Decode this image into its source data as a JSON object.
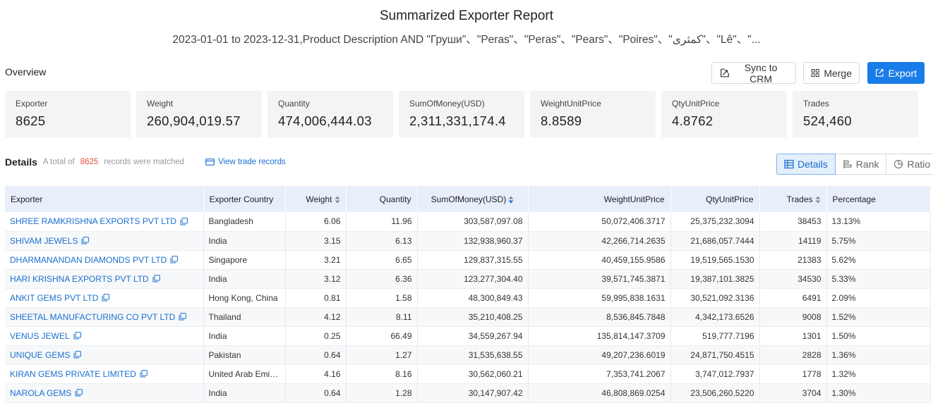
{
  "header": {
    "title": "Summarized Exporter Report",
    "subtitle": "2023-01-01 to 2023-12-31,Product Description AND \"Груши\"、\"Peras\"、\"Peras\"、\"Pears\"、\"Poires\"、\"كمثرى\"、\"Lê\"、\"..."
  },
  "overview": {
    "label": "Overview"
  },
  "toolbar": {
    "sync_label": "Sync to CRM",
    "merge_label": "Merge",
    "export_label": "Export"
  },
  "stats": [
    {
      "label": "Exporter",
      "value": "8625"
    },
    {
      "label": "Weight",
      "value": "260,904,019.57"
    },
    {
      "label": "Quantity",
      "value": "474,006,444.03"
    },
    {
      "label": "SumOfMoney(USD)",
      "value": "2,311,331,174.4"
    },
    {
      "label": "WeightUnitPrice",
      "value": "8.8589"
    },
    {
      "label": "QtyUnitPrice",
      "value": "4.8762"
    },
    {
      "label": "Trades",
      "value": "524,460"
    }
  ],
  "details": {
    "title": "Details",
    "prefix": "A total of",
    "count": "8625",
    "suffix": "records were matched",
    "view_link": "View trade records"
  },
  "view_tabs": {
    "details": "Details",
    "rank": "Rank",
    "ratio": "Ratio"
  },
  "colors": {
    "accent": "#1a7ce8",
    "link": "#1a6fcf",
    "count": "#e2513c",
    "header_bg": "#e8eefa"
  },
  "table": {
    "columns": [
      "Exporter",
      "Exporter Country",
      "Weight",
      "Quantity",
      "SumOfMoney(USD)",
      "WeightUnitPrice",
      "QtyUnitPrice",
      "Trades",
      "Percentage"
    ],
    "rows": [
      [
        "SHREE RAMKRISHNA EXPORTS PVT LTD",
        "Bangladesh",
        "6.06",
        "11.96",
        "303,587,097.08",
        "50,072,406.3717",
        "25,375,232.3094",
        "38453",
        "13.13%"
      ],
      [
        "SHIVAM JEWELS",
        "India",
        "3.15",
        "6.13",
        "132,938,960.37",
        "42,266,714.2635",
        "21,686,057.7444",
        "14119",
        "5.75%"
      ],
      [
        "DHARMANANDAN DIAMONDS PVT LTD",
        "Singapore",
        "3.21",
        "6.65",
        "129,837,315.55",
        "40,459,155.9586",
        "19,519,565.1530",
        "21383",
        "5.62%"
      ],
      [
        "HARI KRISHNA EXPORTS PVT LTD",
        "India",
        "3.12",
        "6.36",
        "123,277,304.40",
        "39,571,745.3871",
        "19,387,101.3825",
        "34530",
        "5.33%"
      ],
      [
        "ANKIT GEMS PVT LTD",
        "Hong Kong, China",
        "0.81",
        "1.58",
        "48,300,849.43",
        "59,995,838.1631",
        "30,521,092.3136",
        "6491",
        "2.09%"
      ],
      [
        "SHEETAL MANUFACTURING CO PVT LTD",
        "Thailand",
        "4.12",
        "8.11",
        "35,210,408.25",
        "8,536,845.7848",
        "4,342,173.6526",
        "9008",
        "1.52%"
      ],
      [
        "VENUS JEWEL",
        "India",
        "0.25",
        "66.49",
        "34,559,267.94",
        "135,814,147.3709",
        "519,777.7196",
        "1301",
        "1.50%"
      ],
      [
        "UNIQUE GEMS",
        "Pakistan",
        "0.64",
        "1.27",
        "31,535,638.55",
        "49,207,236.6019",
        "24,871,750.4515",
        "2828",
        "1.36%"
      ],
      [
        "KIRAN GEMS PRIVATE LIMITED",
        "United Arab Emira...",
        "4.16",
        "8.16",
        "30,562,060.21",
        "7,353,741.2067",
        "3,747,012.7937",
        "1778",
        "1.32%"
      ],
      [
        "NAROLA GEMS",
        "India",
        "0.64",
        "1.28",
        "30,147,907.42",
        "46,808,869.0254",
        "23,506,260.5220",
        "3704",
        "1.30%"
      ]
    ]
  }
}
